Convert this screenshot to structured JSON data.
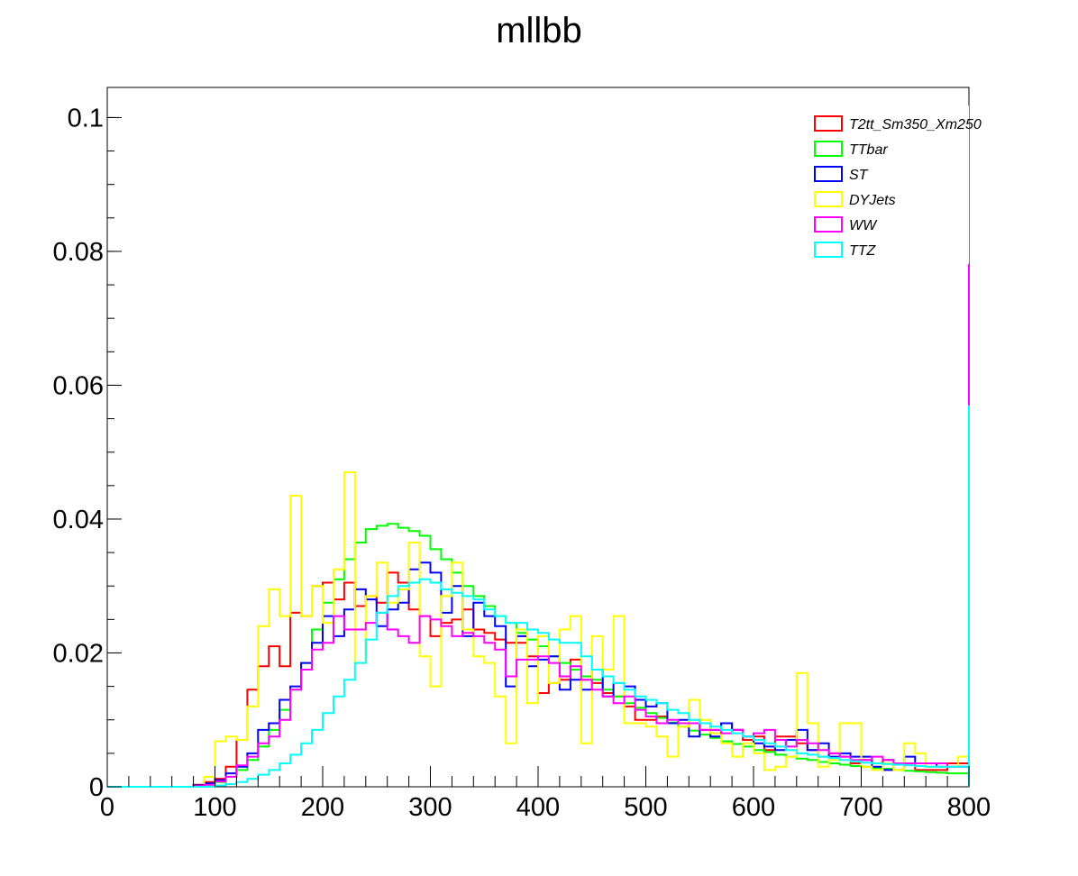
{
  "chart_data": {
    "type": "line",
    "step": true,
    "title": "mllbb",
    "xlabel": "",
    "ylabel": "",
    "xlim": [
      0,
      800
    ],
    "ylim": [
      0,
      0.1045
    ],
    "bin_width": 10,
    "x_ticks": [
      0,
      100,
      200,
      300,
      400,
      500,
      600,
      700,
      800
    ],
    "x_tick_labels": [
      "0",
      "100",
      "200",
      "300",
      "400",
      "500",
      "600",
      "700",
      "800"
    ],
    "y_ticks": [
      0,
      0.02,
      0.04,
      0.06,
      0.08,
      0.1
    ],
    "y_tick_labels": [
      "0",
      "0.02",
      "0.04",
      "0.06",
      "0.08",
      "0.1"
    ],
    "legend_position": "top-right",
    "grid": false,
    "series": [
      {
        "name": "T2tt_Sm350_Xm250",
        "color": "#ff0000",
        "values": [
          0,
          0,
          0,
          0,
          0,
          0,
          0,
          0,
          0.0003,
          0.0007,
          0.0012,
          0.003,
          0.007,
          0.0145,
          0.018,
          0.021,
          0.018,
          0.026,
          0.0255,
          0.03,
          0.0305,
          0.028,
          0.0305,
          0.027,
          0.0285,
          0.0275,
          0.032,
          0.0305,
          0.0265,
          0.0255,
          0.0225,
          0.0245,
          0.025,
          0.0265,
          0.0235,
          0.023,
          0.022,
          0.0215,
          0.0215,
          0.0195,
          0.014,
          0.0155,
          0.016,
          0.019,
          0.016,
          0.0155,
          0.014,
          0.0135,
          0.012,
          0.01,
          0.01,
          0.0105,
          0.0095,
          0.0095,
          0.0095,
          0.0085,
          0.0085,
          0.0095,
          0.0085,
          0.007,
          0.0075,
          0.0055,
          0.0075,
          0.0075,
          0.0065,
          0.0055,
          0.0045,
          0.005,
          0.0045,
          0.0035,
          0.004,
          0.0035,
          0.004,
          0.0025,
          0.0035,
          0.0025,
          0.0025,
          0.0025,
          0.0035,
          0.0035,
          0.056
        ]
      },
      {
        "name": "TTbar",
        "color": "#00ff00",
        "values": [
          0,
          0,
          0,
          0,
          0,
          0,
          0,
          0,
          0.0001,
          0.0003,
          0.0007,
          0.0015,
          0.0025,
          0.004,
          0.006,
          0.0085,
          0.0115,
          0.0145,
          0.0185,
          0.0235,
          0.0275,
          0.031,
          0.034,
          0.0365,
          0.0385,
          0.039,
          0.0393,
          0.0387,
          0.0382,
          0.0375,
          0.0355,
          0.034,
          0.032,
          0.03,
          0.0285,
          0.027,
          0.0255,
          0.0245,
          0.023,
          0.022,
          0.021,
          0.0195,
          0.0185,
          0.0175,
          0.0165,
          0.016,
          0.0145,
          0.0135,
          0.0125,
          0.0118,
          0.011,
          0.0103,
          0.0096,
          0.009,
          0.0084,
          0.0078,
          0.0073,
          0.0068,
          0.0064,
          0.006,
          0.0055,
          0.0052,
          0.0048,
          0.0045,
          0.0042,
          0.004,
          0.0037,
          0.0035,
          0.0033,
          0.0031,
          0.003,
          0.0028,
          0.0027,
          0.0025,
          0.0024,
          0.0023,
          0.0022,
          0.0021,
          0.002,
          0.002,
          0.03
        ]
      },
      {
        "name": "ST",
        "color": "#0000ff",
        "values": [
          0,
          0,
          0,
          0,
          0,
          0,
          0,
          0,
          0.0002,
          0.0005,
          0.001,
          0.002,
          0.003,
          0.005,
          0.0085,
          0.0095,
          0.013,
          0.015,
          0.0185,
          0.0215,
          0.0255,
          0.0225,
          0.0265,
          0.0295,
          0.028,
          0.024,
          0.0265,
          0.0275,
          0.0325,
          0.0335,
          0.032,
          0.026,
          0.03,
          0.0225,
          0.0275,
          0.0255,
          0.024,
          0.015,
          0.0225,
          0.018,
          0.019,
          0.0195,
          0.0145,
          0.016,
          0.0145,
          0.0175,
          0.0135,
          0.0155,
          0.015,
          0.013,
          0.012,
          0.0125,
          0.0095,
          0.01,
          0.0075,
          0.0095,
          0.0075,
          0.0095,
          0.0085,
          0.0075,
          0.0065,
          0.006,
          0.0055,
          0.007,
          0.0085,
          0.0055,
          0.0065,
          0.0045,
          0.005,
          0.0045,
          0.0045,
          0.003,
          0.0025,
          0.0035,
          0.0045,
          0.0035,
          0.0035,
          0.003,
          0.003,
          0.003,
          0.0675
        ]
      },
      {
        "name": "DYJets",
        "color": "#ffff00",
        "values": [
          0,
          0,
          0,
          0,
          0,
          0,
          0,
          0,
          0,
          0.0015,
          0.0068,
          0.0075,
          0.007,
          0.012,
          0.024,
          0.0295,
          0.0255,
          0.0435,
          0.0255,
          0.03,
          0.0245,
          0.0325,
          0.047,
          0.0185,
          0.0285,
          0.0335,
          0.0275,
          0.0295,
          0.0365,
          0.0195,
          0.015,
          0.0285,
          0.0335,
          0.0235,
          0.0195,
          0.0185,
          0.0135,
          0.0065,
          0.0235,
          0.0125,
          0.0225,
          0.0155,
          0.0235,
          0.0255,
          0.0065,
          0.0225,
          0.0175,
          0.0255,
          0.0095,
          0.0095,
          0.009,
          0.0075,
          0.0045,
          0.009,
          0.013,
          0.01,
          0.008,
          0.0065,
          0.0045,
          0.0065,
          0.005,
          0.0025,
          0.003,
          0.0045,
          0.017,
          0.0095,
          0.003,
          0.004,
          0.0095,
          0.0095,
          0.003,
          0.0025,
          0.0035,
          0.0025,
          0.0065,
          0.005,
          0.003,
          0.003,
          0.003,
          0.0045,
          0.023
        ]
      },
      {
        "name": "WW",
        "color": "#ff00ff",
        "values": [
          0,
          0,
          0,
          0,
          0,
          0,
          0,
          0,
          0.0001,
          0.0003,
          0.0008,
          0.0015,
          0.0032,
          0.0045,
          0.0065,
          0.0075,
          0.01,
          0.0145,
          0.0175,
          0.0205,
          0.0215,
          0.0255,
          0.0235,
          0.0235,
          0.0245,
          0.026,
          0.0235,
          0.0225,
          0.0215,
          0.0255,
          0.025,
          0.024,
          0.0225,
          0.023,
          0.0225,
          0.0215,
          0.0205,
          0.0165,
          0.019,
          0.019,
          0.0195,
          0.0185,
          0.0165,
          0.018,
          0.016,
          0.0145,
          0.0135,
          0.0125,
          0.0135,
          0.0115,
          0.0105,
          0.0095,
          0.01,
          0.0095,
          0.0095,
          0.0085,
          0.0085,
          0.008,
          0.0085,
          0.0075,
          0.008,
          0.0085,
          0.007,
          0.006,
          0.007,
          0.0065,
          0.0055,
          0.005,
          0.0045,
          0.004,
          0.004,
          0.0045,
          0.004,
          0.0035,
          0.0035,
          0.0035,
          0.0035,
          0.0035,
          0.003,
          0.003,
          0.0785
        ]
      },
      {
        "name": "TTZ",
        "color": "#00ffff",
        "values": [
          0,
          0,
          0,
          0,
          0,
          0,
          0,
          0,
          0,
          0,
          0.0002,
          0.0004,
          0.0007,
          0.0012,
          0.0018,
          0.0025,
          0.0035,
          0.0048,
          0.0065,
          0.0085,
          0.011,
          0.0135,
          0.016,
          0.0185,
          0.022,
          0.026,
          0.0285,
          0.03,
          0.0305,
          0.031,
          0.0305,
          0.0295,
          0.029,
          0.0285,
          0.028,
          0.0265,
          0.0255,
          0.0245,
          0.0245,
          0.0235,
          0.023,
          0.022,
          0.0215,
          0.0215,
          0.0195,
          0.0175,
          0.0165,
          0.0155,
          0.0145,
          0.0135,
          0.013,
          0.0125,
          0.0115,
          0.011,
          0.01,
          0.0095,
          0.009,
          0.0085,
          0.008,
          0.0075,
          0.007,
          0.0065,
          0.006,
          0.0055,
          0.005,
          0.0048,
          0.0045,
          0.0043,
          0.004,
          0.0038,
          0.0036,
          0.0035,
          0.0034,
          0.0033,
          0.0032,
          0.0031,
          0.003,
          0.003,
          0.003,
          0.003,
          0.057
        ]
      }
    ]
  }
}
